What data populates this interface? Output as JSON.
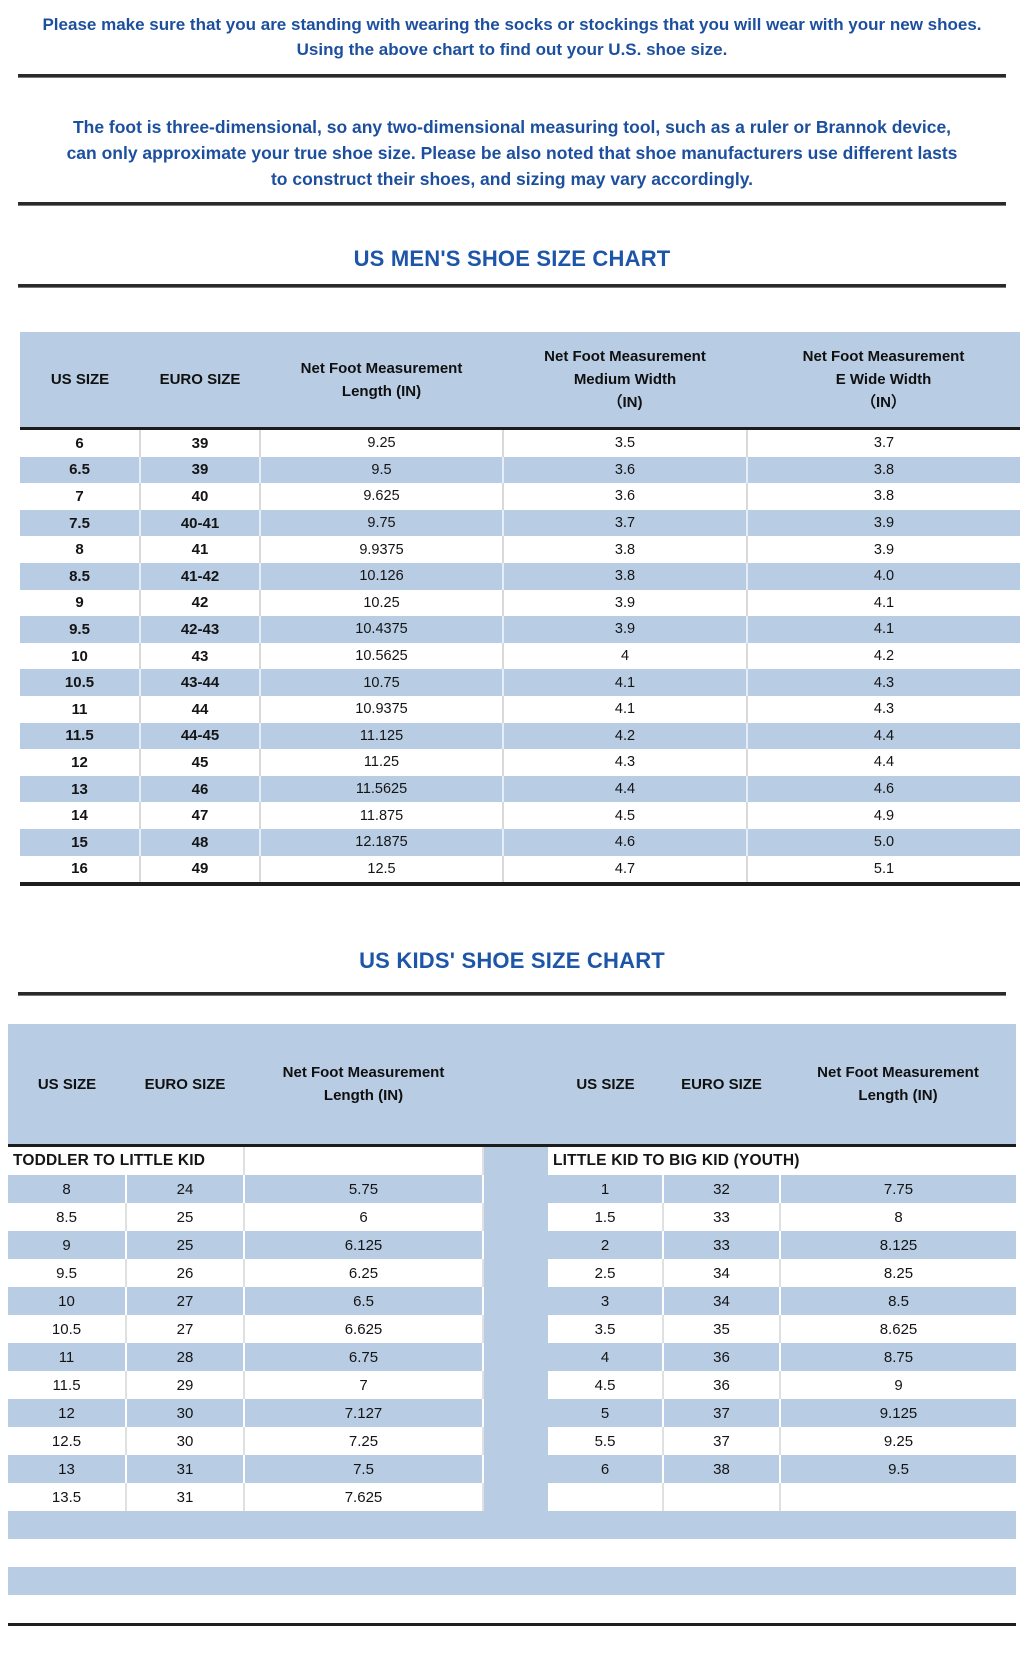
{
  "colors": {
    "accent_blue": "#b8cce4",
    "title_blue": "#1d55a8",
    "paragraph_blue": "#1d4f9f",
    "rule_dark": "#2a2a2a"
  },
  "intro": {
    "line1": "Please make sure that you are standing with wearing the socks or stockings that you will wear with your new shoes.",
    "line2": "Using the above chart to find out your U.S. shoe size."
  },
  "note": "The foot is three-dimensional, so any two-dimensional measuring tool, such as a ruler or Brannok device, can only approximate your true shoe size. Please be also noted that shoe manufacturers use different lasts to construct their shoes, and sizing may vary accordingly.",
  "mens_chart": {
    "title": "US MEN'S SHOE SIZE CHART",
    "columns": [
      {
        "line1": "US SIZE"
      },
      {
        "line1": "EURO SIZE"
      },
      {
        "line1": "Net Foot Measurement",
        "line2": "Length (IN)"
      },
      {
        "line1": "Net Foot Measurement",
        "line2": "Medium Width",
        "line3": "（IN)"
      },
      {
        "line1": "Net Foot Measurement",
        "line2": "E Wide Width",
        "line3": "（IN）"
      }
    ],
    "rows": [
      [
        "6",
        "39",
        "9.25",
        "3.5",
        "3.7"
      ],
      [
        "6.5",
        "39",
        "9.5",
        "3.6",
        "3.8"
      ],
      [
        "7",
        "40",
        "9.625",
        "3.6",
        "3.8"
      ],
      [
        "7.5",
        "40-41",
        "9.75",
        "3.7",
        "3.9"
      ],
      [
        "8",
        "41",
        "9.9375",
        "3.8",
        "3.9"
      ],
      [
        "8.5",
        "41-42",
        "10.126",
        "3.8",
        "4.0"
      ],
      [
        "9",
        "42",
        "10.25",
        "3.9",
        "4.1"
      ],
      [
        "9.5",
        "42-43",
        "10.4375",
        "3.9",
        "4.1"
      ],
      [
        "10",
        "43",
        "10.5625",
        "4",
        "4.2"
      ],
      [
        "10.5",
        "43-44",
        "10.75",
        "4.1",
        "4.3"
      ],
      [
        "11",
        "44",
        "10.9375",
        "4.1",
        "4.3"
      ],
      [
        "11.5",
        "44-45",
        "11.125",
        "4.2",
        "4.4"
      ],
      [
        "12",
        "45",
        "11.25",
        "4.3",
        "4.4"
      ],
      [
        "13",
        "46",
        "11.5625",
        "4.4",
        "4.6"
      ],
      [
        "14",
        "47",
        "11.875",
        "4.5",
        "4.9"
      ],
      [
        "15",
        "48",
        "12.1875",
        "4.6",
        "5.0"
      ],
      [
        "16",
        "49",
        "12.5",
        "4.7",
        "5.1"
      ]
    ]
  },
  "kids_chart": {
    "title": "US KIDS' SHOE SIZE CHART",
    "columns": [
      {
        "line1": "US SIZE"
      },
      {
        "line1": "EURO SIZE"
      },
      {
        "line1": "Net Foot Measurement",
        "line2": "Length (IN)"
      },
      {
        "line1": "US SIZE"
      },
      {
        "line1": "EURO SIZE"
      },
      {
        "line1": "Net Foot Measurement",
        "line2": "Length (IN)"
      }
    ],
    "left_section_label": "TODDLER TO LITTLE KID",
    "right_section_label": "LITTLE KID TO BIG KID (YOUTH)",
    "rows": [
      [
        "8",
        "24",
        "5.75",
        "1",
        "32",
        "7.75"
      ],
      [
        "8.5",
        "25",
        "6",
        "1.5",
        "33",
        "8"
      ],
      [
        "9",
        "25",
        "6.125",
        "2",
        "33",
        "8.125"
      ],
      [
        "9.5",
        "26",
        "6.25",
        "2.5",
        "34",
        "8.25"
      ],
      [
        "10",
        "27",
        "6.5",
        "3",
        "34",
        "8.5"
      ],
      [
        "10.5",
        "27",
        "6.625",
        "3.5",
        "35",
        "8.625"
      ],
      [
        "11",
        "28",
        "6.75",
        "4",
        "36",
        "8.75"
      ],
      [
        "11.5",
        "29",
        "7",
        "4.5",
        "36",
        "9"
      ],
      [
        "12",
        "30",
        "7.127",
        "5",
        "37",
        "9.125"
      ],
      [
        "12.5",
        "30",
        "7.25",
        "5.5",
        "37",
        "9.25"
      ],
      [
        "13",
        "31",
        "7.5",
        "6",
        "38",
        "9.5"
      ],
      [
        "13.5",
        "31",
        "7.625",
        "",
        "",
        ""
      ],
      [
        "",
        "",
        "",
        "",
        "",
        ""
      ],
      [
        "",
        "",
        "",
        "",
        "",
        ""
      ],
      [
        "",
        "",
        "",
        "",
        "",
        ""
      ],
      [
        "",
        "",
        "",
        "",
        "",
        ""
      ]
    ]
  }
}
